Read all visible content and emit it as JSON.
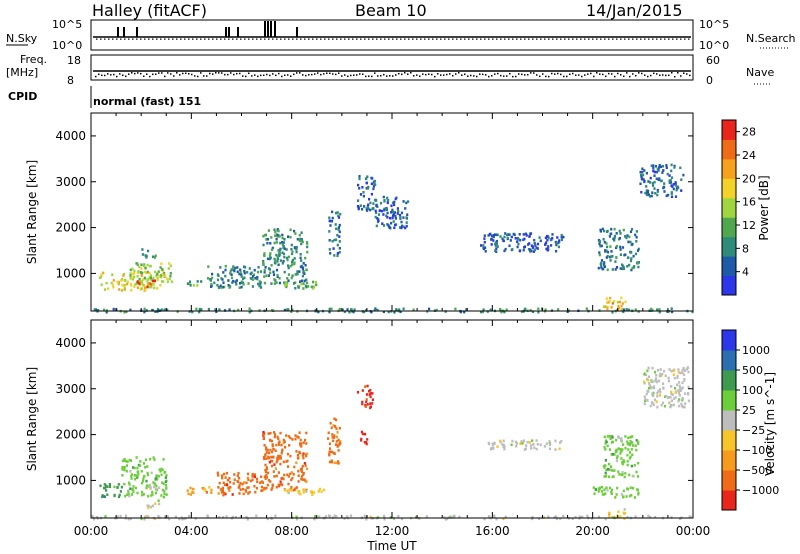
{
  "header": {
    "station": "Halley (fitACF)",
    "beam": "Beam 10",
    "date": "14/Jan/2015"
  },
  "top_panels": {
    "nsky": {
      "label": "N.Sky",
      "ticks": [
        "10^5",
        "10^0"
      ]
    },
    "nsearch": {
      "label": "N.Search",
      "ticks": [
        "10^5",
        "10^0"
      ]
    },
    "freq": {
      "label_1": "Freq.",
      "label_2": "[MHz]",
      "ticks": [
        "18",
        "8"
      ]
    },
    "nave": {
      "label": "Nave",
      "ticks": [
        "60",
        "0"
      ]
    },
    "cpid": {
      "label": "CPID",
      "value": "normal (fast) 151"
    }
  },
  "colors": {
    "power": [
      "#2b37e8",
      "#1e5aa8",
      "#2e8a7a",
      "#4fa84e",
      "#9fd640",
      "#f3d22a",
      "#f7a21e",
      "#ef6b16",
      "#e8261c"
    ],
    "velocity": [
      "#e8261c",
      "#ef6b16",
      "#f79b1e",
      "#f7c52a",
      "#bdbdbd",
      "#6ccf3a",
      "#3e9a4e",
      "#2b6fb0",
      "#2b37e8"
    ]
  },
  "chart_data": [
    {
      "type": "heatmap",
      "name": "power",
      "ylabel": "Slant Range [km]",
      "xlabel": "Time UT",
      "x_ticks": [
        "00:00",
        "04:00",
        "08:00",
        "12:00",
        "16:00",
        "20:00",
        "00:00"
      ],
      "xlim": [
        0,
        24
      ],
      "y_ticks": [
        "1000",
        "2000",
        "3000",
        "4000"
      ],
      "ylim": [
        180,
        4500
      ],
      "colorbar": {
        "label": "Power [dB]",
        "ticks": [
          "4",
          "8",
          "12",
          "16",
          "20",
          "24",
          "28"
        ],
        "range": [
          0,
          30
        ]
      },
      "regions": [
        {
          "t0": 0.3,
          "t1": 2.8,
          "r0": 650,
          "r1": 1050,
          "v": 18
        },
        {
          "t0": 1.5,
          "t1": 3.2,
          "r0": 800,
          "r1": 1250,
          "v": 14
        },
        {
          "t0": 2.0,
          "t1": 2.6,
          "r0": 1350,
          "r1": 1550,
          "v": 10
        },
        {
          "t0": 1.8,
          "t1": 2.6,
          "r0": 700,
          "r1": 900,
          "v": 26
        },
        {
          "t0": 3.8,
          "t1": 4.4,
          "r0": 720,
          "r1": 900,
          "v": 12
        },
        {
          "t0": 4.6,
          "t1": 6.8,
          "r0": 700,
          "r1": 1200,
          "v": 8
        },
        {
          "t0": 6.8,
          "t1": 8.6,
          "r0": 800,
          "r1": 2000,
          "v": 9
        },
        {
          "t0": 7.6,
          "t1": 9.2,
          "r0": 700,
          "r1": 850,
          "v": 12
        },
        {
          "t0": 9.4,
          "t1": 9.9,
          "r0": 1400,
          "r1": 2400,
          "v": 6
        },
        {
          "t0": 10.6,
          "t1": 11.3,
          "r0": 2400,
          "r1": 3200,
          "v": 5
        },
        {
          "t0": 11.3,
          "t1": 12.6,
          "r0": 2000,
          "r1": 2700,
          "v": 5
        },
        {
          "t0": 15.5,
          "t1": 18.8,
          "r0": 1500,
          "r1": 1900,
          "v": 5
        },
        {
          "t0": 20.2,
          "t1": 21.8,
          "r0": 1100,
          "r1": 2000,
          "v": 7
        },
        {
          "t0": 20.4,
          "t1": 21.3,
          "r0": 200,
          "r1": 500,
          "v": 20
        },
        {
          "t0": 21.8,
          "t1": 23.6,
          "r0": 2700,
          "r1": 3400,
          "v": 6
        },
        {
          "t0": 0.0,
          "t1": 24.0,
          "r0": 180,
          "r1": 260,
          "v": 9
        }
      ]
    },
    {
      "type": "heatmap",
      "name": "velocity",
      "ylabel": "Slant Range [km]",
      "xlabel": "Time UT",
      "x_ticks": [
        "00:00",
        "04:00",
        "08:00",
        "12:00",
        "16:00",
        "20:00",
        "00:00"
      ],
      "xlim": [
        0,
        24
      ],
      "y_ticks": [
        "1000",
        "2000",
        "3000",
        "4000"
      ],
      "ylim": [
        180,
        4500
      ],
      "colorbar": {
        "label": "Velocity [m s^-1]",
        "ticks": [
          "1000",
          "500",
          "100",
          "25",
          "−25",
          "−100",
          "−500",
          "−1000"
        ]
      },
      "regions": [
        {
          "t0": 0.3,
          "t1": 1.2,
          "r0": 650,
          "r1": 1000,
          "v": 6
        },
        {
          "t0": 1.2,
          "t1": 3.0,
          "r0": 650,
          "r1": 1550,
          "v": 5
        },
        {
          "t0": 2.2,
          "t1": 2.7,
          "r0": 400,
          "r1": 900,
          "v": 4
        },
        {
          "t0": 3.8,
          "t1": 4.8,
          "r0": 720,
          "r1": 900,
          "v": 2
        },
        {
          "t0": 5.0,
          "t1": 6.8,
          "r0": 700,
          "r1": 1200,
          "v": 1
        },
        {
          "t0": 6.8,
          "t1": 8.6,
          "r0": 800,
          "r1": 2100,
          "v": 1
        },
        {
          "t0": 7.6,
          "t1": 9.4,
          "r0": 700,
          "r1": 850,
          "v": 3
        },
        {
          "t0": 9.4,
          "t1": 9.9,
          "r0": 1400,
          "r1": 2400,
          "v": 1
        },
        {
          "t0": 10.6,
          "t1": 11.2,
          "r0": 2600,
          "r1": 3100,
          "v": 0
        },
        {
          "t0": 10.6,
          "t1": 11.0,
          "r0": 1800,
          "r1": 2100,
          "v": 0
        },
        {
          "t0": 15.8,
          "t1": 18.8,
          "r0": 1700,
          "r1": 1900,
          "v": 4
        },
        {
          "t0": 20.4,
          "t1": 21.8,
          "r0": 1100,
          "r1": 2000,
          "v": 5
        },
        {
          "t0": 20.0,
          "t1": 21.8,
          "r0": 650,
          "r1": 900,
          "v": 5
        },
        {
          "t0": 20.6,
          "t1": 21.4,
          "r0": 200,
          "r1": 400,
          "v": 3
        },
        {
          "t0": 22.0,
          "t1": 23.8,
          "r0": 2600,
          "r1": 3500,
          "v": 4
        },
        {
          "t0": 0.0,
          "t1": 24.0,
          "r0": 180,
          "r1": 260,
          "v": 4
        }
      ]
    }
  ]
}
